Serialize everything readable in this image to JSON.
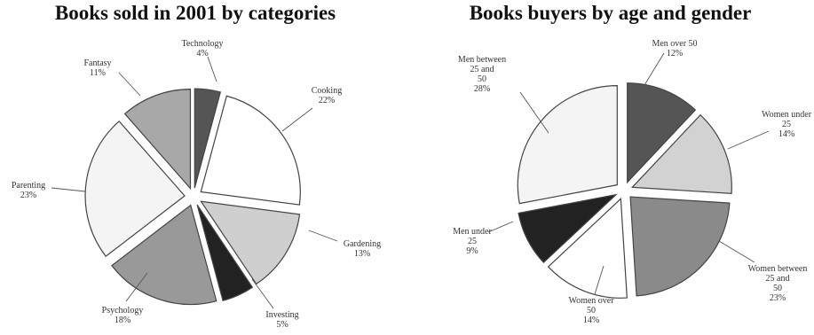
{
  "chart_data": [
    {
      "type": "pie",
      "title": "Books sold in 2001 by categories",
      "slices": [
        {
          "label": "Technology",
          "value": 4,
          "color": "#555555"
        },
        {
          "label": "Cooking",
          "value": 22,
          "color": "#ffffff"
        },
        {
          "label": "Gardening",
          "value": 13,
          "color": "#cfcfcf"
        },
        {
          "label": "Investing",
          "value": 5,
          "color": "#222222"
        },
        {
          "label": "Psychology",
          "value": 18,
          "color": "#999999"
        },
        {
          "label": "Parenting",
          "value": 23,
          "color": "#f4f4f4"
        },
        {
          "label": "Fantasy",
          "value": 11,
          "color": "#a8a8a8"
        }
      ]
    },
    {
      "type": "pie",
      "title": "Books buyers by age and gender",
      "slices": [
        {
          "label": "Men over 50",
          "value": 12,
          "color": "#555555"
        },
        {
          "label": "Women under 25",
          "value": 14,
          "color": "#d2d2d2"
        },
        {
          "label": "Women between 25 and 50",
          "value": 23,
          "color": "#8a8a8a"
        },
        {
          "label": "Women over 50",
          "value": 14,
          "color": "#ffffff"
        },
        {
          "label": "Men under 25",
          "value": 9,
          "color": "#222222"
        },
        {
          "label": "Men between 25 and 50",
          "value": 28,
          "color": "#f4f4f4"
        }
      ]
    }
  ]
}
